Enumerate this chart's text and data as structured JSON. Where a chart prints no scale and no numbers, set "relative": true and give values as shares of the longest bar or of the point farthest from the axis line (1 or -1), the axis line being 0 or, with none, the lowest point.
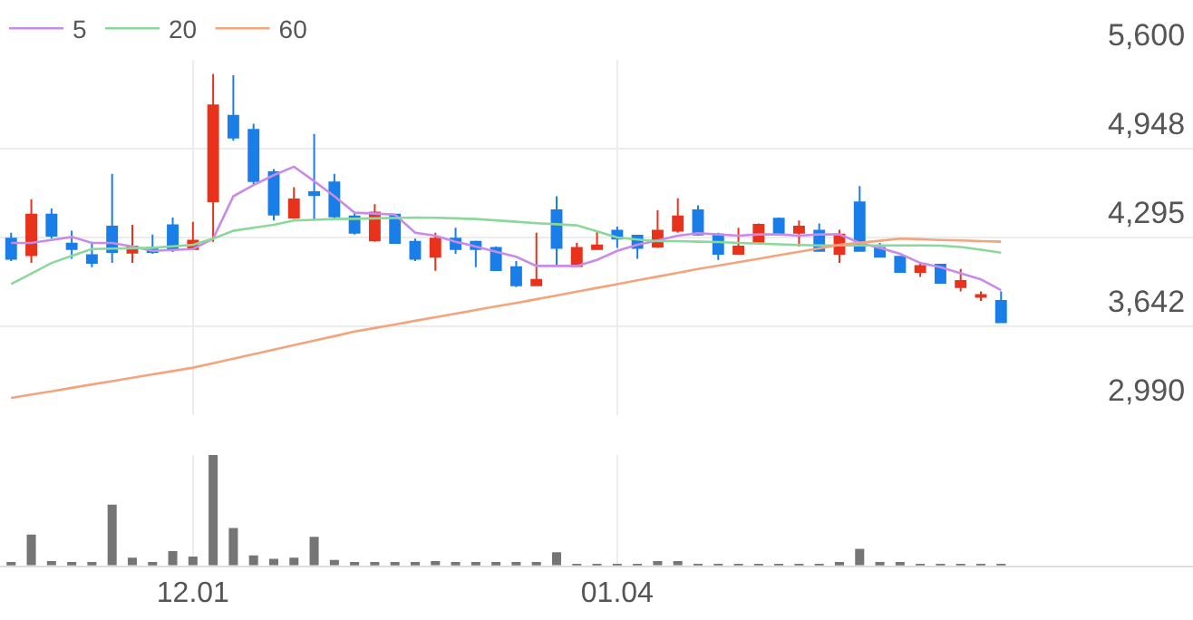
{
  "chart_data": [
    {
      "type": "candlestick",
      "categories": [
        null,
        null,
        null,
        null,
        null,
        null,
        null,
        null,
        null,
        "12.01",
        null,
        null,
        null,
        null,
        null,
        null,
        null,
        null,
        null,
        null,
        null,
        null,
        null,
        null,
        null,
        null,
        null,
        null,
        null,
        null,
        "01.04",
        null,
        null,
        null,
        null,
        null,
        null,
        null,
        null,
        null,
        null,
        null,
        null,
        null,
        null,
        null,
        null,
        null,
        null,
        null
      ],
      "ohlc": [
        [
          4286,
          4330,
          4122,
          4139
        ],
        [
          4166,
          4574,
          4108,
          4463
        ],
        [
          4463,
          4508,
          4286,
          4308
        ],
        [
          4250,
          4344,
          4139,
          4210
        ],
        [
          4166,
          4264,
          4077,
          4108
        ],
        [
          4375,
          4761,
          4108,
          4188
        ],
        [
          4184,
          4388,
          4108,
          4228
        ],
        [
          4219,
          4317,
          4175,
          4188
        ],
        [
          4384,
          4441,
          4188,
          4210
        ],
        [
          4210,
          4410,
          4210,
          4272
        ],
        [
          4561,
          5493,
          4264,
          5263
        ],
        [
          5187,
          5485,
          5005,
          5027
        ],
        [
          5085,
          5129,
          4685,
          4708
        ],
        [
          4774,
          4796,
          4419,
          4463
        ],
        [
          4441,
          4663,
          4432,
          4574
        ],
        [
          4628,
          5054,
          4419,
          4605
        ],
        [
          4699,
          4761,
          4432,
          4450
        ],
        [
          4450,
          4477,
          4317,
          4330
        ],
        [
          4273,
          4539,
          4264,
          4477
        ],
        [
          4463,
          4470,
          4250,
          4255
        ],
        [
          4264,
          4286,
          4122,
          4139
        ],
        [
          4153,
          4330,
          4051,
          4286
        ],
        [
          4286,
          4366,
          4175,
          4210
        ],
        [
          4264,
          4272,
          4077,
          4210
        ],
        [
          4219,
          4228,
          4055,
          4055
        ],
        [
          4077,
          4122,
          3931,
          3944
        ],
        [
          3944,
          4330,
          3944,
          3984
        ],
        [
          4495,
          4597,
          4095,
          4219
        ],
        [
          4086,
          4255,
          4086,
          4219
        ],
        [
          4210,
          4344,
          4210,
          4237
        ],
        [
          4344,
          4375,
          4219,
          4286
        ],
        [
          4308,
          4308,
          4139,
          4219
        ],
        [
          4228,
          4495,
          4219,
          4344
        ],
        [
          4344,
          4583,
          4330,
          4450
        ],
        [
          4495,
          4530,
          4308,
          4317
        ],
        [
          4317,
          4330,
          4130,
          4175
        ],
        [
          4175,
          4366,
          4175,
          4228
        ],
        [
          4264,
          4397,
          4264,
          4388
        ],
        [
          4432,
          4441,
          4317,
          4326
        ],
        [
          4330,
          4419,
          4228,
          4375
        ],
        [
          4344,
          4397,
          4197,
          4197
        ],
        [
          4175,
          4352,
          4108,
          4317
        ],
        [
          4552,
          4672,
          4197,
          4197
        ],
        [
          4219,
          4255,
          4153,
          4153
        ],
        [
          4153,
          4153,
          4042,
          4042
        ],
        [
          4042,
          4108,
          4006,
          4086
        ],
        [
          4095,
          4095,
          3962,
          3962
        ],
        [
          3931,
          4064,
          3900,
          3975
        ],
        [
          3860,
          3900,
          3829,
          3873
        ],
        [
          3829,
          3900,
          3673,
          3673
        ]
      ],
      "colors": [
        "#1a7ee8",
        "#e8321c",
        "#1a7ee8",
        "#1a7ee8",
        "#1a7ee8",
        "#1a7ee8",
        "#e8321c",
        "#1a7ee8",
        "#1a7ee8",
        "#e8321c",
        "#e8321c",
        "#1a7ee8",
        "#1a7ee8",
        "#1a7ee8",
        "#e8321c",
        "#1a7ee8",
        "#1a7ee8",
        "#1a7ee8",
        "#e8321c",
        "#1a7ee8",
        "#1a7ee8",
        "#e8321c",
        "#1a7ee8",
        "#1a7ee8",
        "#1a7ee8",
        "#1a7ee8",
        "#e8321c",
        "#1a7ee8",
        "#e8321c",
        "#e8321c",
        "#1a7ee8",
        "#1a7ee8",
        "#e8321c",
        "#e8321c",
        "#1a7ee8",
        "#1a7ee8",
        "#e8321c",
        "#e8321c",
        "#1a7ee8",
        "#e8321c",
        "#1a7ee8",
        "#e8321c",
        "#1a7ee8",
        "#1a7ee8",
        "#1a7ee8",
        "#e8321c",
        "#1a7ee8",
        "#e8321c",
        "#e8321c",
        "#1a7ee8"
      ],
      "series": [
        {
          "name": "5",
          "type": "line",
          "color": "#c98be8",
          "values": [
            4255,
            4255,
            4277,
            4299,
            4255,
            4255,
            4228,
            4197,
            4203,
            4210,
            4286,
            4597,
            4680,
            4752,
            4814,
            4708,
            4597,
            4477,
            4470,
            4463,
            4330,
            4308,
            4264,
            4228,
            4190,
            4153,
            4086,
            4086,
            4086,
            4130,
            4197,
            4241,
            4273,
            4308,
            4326,
            4317,
            4308,
            4317,
            4317,
            4308,
            4317,
            4317,
            4255,
            4219,
            4175,
            4108,
            4077,
            4033,
            3988,
            3908
          ]
        },
        {
          "name": "20",
          "type": "line",
          "color": "#8ad99a",
          "values": [
            3953,
            4030,
            4108,
            4160,
            4210,
            4213,
            4216,
            4219,
            4230,
            4241,
            4286,
            4344,
            4366,
            4388,
            4419,
            4425,
            4430,
            4432,
            4435,
            4438,
            4441,
            4439,
            4435,
            4430,
            4420,
            4410,
            4400,
            4392,
            4384,
            4340,
            4295,
            4280,
            4268,
            4268,
            4264,
            4262,
            4255,
            4250,
            4245,
            4240,
            4237,
            4237,
            4237,
            4237,
            4237,
            4237,
            4235,
            4225,
            4205,
            4184
          ]
        },
        {
          "name": "60",
          "type": "line",
          "color": "#f4a47c",
          "values": [
            3118,
            3143,
            3167,
            3192,
            3217,
            3241,
            3266,
            3291,
            3315,
            3340,
            3373,
            3406,
            3439,
            3472,
            3505,
            3538,
            3571,
            3605,
            3631,
            3657,
            3684,
            3710,
            3736,
            3763,
            3789,
            3815,
            3842,
            3870,
            3897,
            3925,
            3953,
            3981,
            4008,
            4036,
            4064,
            4089,
            4114,
            4139,
            4165,
            4190,
            4215,
            4241,
            4256,
            4271,
            4286,
            4282,
            4277,
            4273,
            4268,
            4264
          ]
        }
      ],
      "ylim": [
        2990,
        5600
      ],
      "yticks": [
        {
          "value": 2990,
          "label": "2,990"
        },
        {
          "value": 3642,
          "label": "3,642"
        },
        {
          "value": 4295,
          "label": "4,295"
        },
        {
          "value": 4948,
          "label": "4,948"
        },
        {
          "value": 5600,
          "label": "5,600"
        }
      ],
      "grid": true,
      "legend": "top left",
      "tick_labels": "y"
    },
    {
      "type": "bar",
      "relative": true,
      "color": "#757575",
      "grid": "x",
      "tick_labels": "x",
      "categories": [
        null,
        null,
        null,
        null,
        null,
        null,
        null,
        null,
        null,
        "12.01",
        null,
        null,
        null,
        null,
        null,
        null,
        null,
        null,
        null,
        null,
        null,
        null,
        null,
        null,
        null,
        null,
        null,
        null,
        null,
        null,
        "01.04",
        null,
        null,
        null,
        null,
        null,
        null,
        null,
        null,
        null,
        null,
        null,
        null,
        null,
        null,
        null,
        null,
        null,
        null,
        null
      ],
      "values": [
        0.03,
        0.28,
        0.04,
        0.03,
        0.03,
        0.55,
        0.07,
        0.03,
        0.13,
        0.08,
        1,
        0.34,
        0.09,
        0.06,
        0.07,
        0.26,
        0.05,
        0.02,
        0.02,
        0.02,
        0.02,
        0.04,
        0.02,
        0.02,
        0.02,
        0.02,
        0.03,
        0.12,
        0.01,
        0.01,
        0.01,
        0.01,
        0.04,
        0.04,
        0.01,
        0.01,
        0.01,
        0.01,
        0.01,
        0.01,
        0.01,
        0.02,
        0.15,
        0.02,
        0.02,
        0.01,
        0.01,
        0.01,
        0.01,
        0.01
      ]
    }
  ]
}
